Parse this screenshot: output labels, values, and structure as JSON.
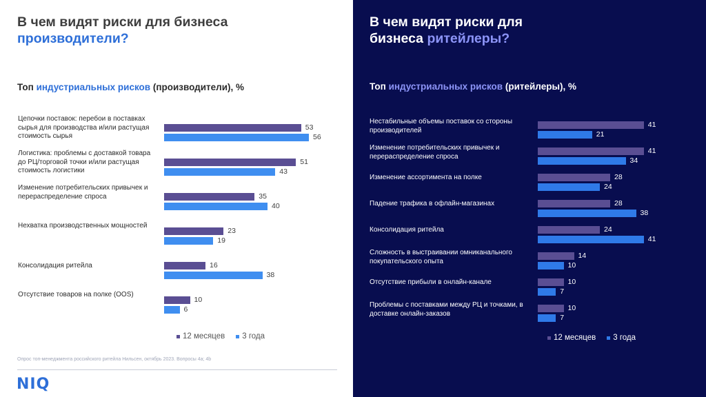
{
  "left": {
    "title_line1": "В чем видят риски для бизнеса",
    "title_line2_hl": "производители?",
    "subtitle_pre": "Топ ",
    "subtitle_hl": "индустриальных рисков",
    "subtitle_post": " (производители), %",
    "legend": [
      "12 месяцев",
      "3 года"
    ],
    "source": "Опрос топ-менеджмента российского ритейла Нильсен, октябрь 2023. Вопросы 4а; 4b",
    "logo": "NIQ"
  },
  "right": {
    "title_line1": "В чем видят риски для",
    "title_line2_pre": "бизнеса ",
    "title_line2_hl": "ритейлеры?",
    "subtitle_pre": "Топ ",
    "subtitle_hl": "индустриальных рисков",
    "subtitle_post": " (ритейлеры), %",
    "legend": [
      "12 месяцев",
      "3 года"
    ]
  },
  "colors": {
    "series_12m": "#5a4e93",
    "series_3y": "#3f8ef0",
    "accent": "#2e6fd8",
    "dark_bg": "#080d4f"
  },
  "chart_data": [
    {
      "type": "bar",
      "orientation": "horizontal",
      "title": "Топ индустриальных рисков (производители), %",
      "categories": [
        "Цепочки поставок: перебои в поставках сырья для производства и/или растущая стоимость сырья",
        "Логистика: проблемы с доставкой товара до РЦ/торговой точки и/или растущая стоимость логистики",
        "Изменение потребительских привычек и перераспределение спроса",
        "Нехватка производственных мощностей",
        "Консолидация ритейла",
        "Отсутствие товаров на полке (OOS)"
      ],
      "series": [
        {
          "name": "12 месяцев",
          "values": [
            53,
            51,
            35,
            23,
            16,
            10
          ]
        },
        {
          "name": "3 года",
          "values": [
            56,
            43,
            40,
            19,
            38,
            6
          ]
        }
      ],
      "legend": "bottom"
    },
    {
      "type": "bar",
      "orientation": "horizontal",
      "title": "Топ индустриальных рисков (ритейлеры), %",
      "categories": [
        "Нестабильные объемы поставок со стороны производителей",
        "Изменение потребительских привычек и перераспределение спроса",
        "Изменение ассортимента на полке",
        "Падение трафика в офлайн-магазинах",
        "Консолидация ритейла",
        "Сложность в выстраивании омниканального покупательского опыта",
        "Отсутствие прибыли в онлайн-канале",
        "Проблемы с поставками между РЦ и точками, в доставке онлайн-заказов"
      ],
      "series": [
        {
          "name": "12 месяцев",
          "values": [
            41,
            41,
            28,
            28,
            24,
            14,
            10,
            10
          ]
        },
        {
          "name": "3 года",
          "values": [
            21,
            34,
            24,
            38,
            41,
            10,
            7,
            7
          ]
        }
      ],
      "legend": "bottom"
    }
  ]
}
